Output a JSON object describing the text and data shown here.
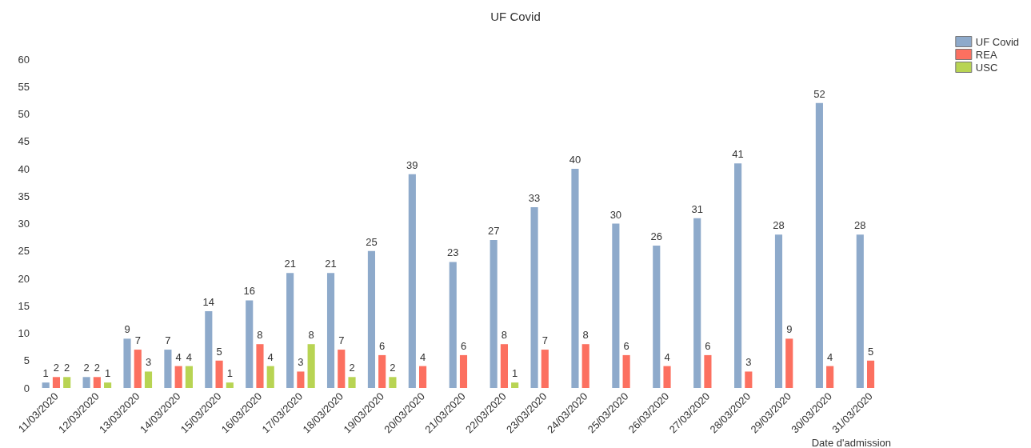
{
  "chart_data": {
    "type": "bar",
    "title": "UF Covid",
    "xlabel": "Date d'admission",
    "categories": [
      "11/03/2020",
      "12/03/2020",
      "13/03/2020",
      "14/03/2020",
      "15/03/2020",
      "16/03/2020",
      "17/03/2020",
      "18/03/2020",
      "19/03/2020",
      "20/03/2020",
      "21/03/2020",
      "22/03/2020",
      "23/03/2020",
      "24/03/2020",
      "25/03/2020",
      "26/03/2020",
      "27/03/2020",
      "28/03/2020",
      "29/03/2020",
      "30/03/2020",
      "31/03/2020"
    ],
    "series": [
      {
        "name": "UF Covid",
        "color": "#8eaacb",
        "values": [
          1,
          2,
          9,
          7,
          14,
          16,
          21,
          21,
          25,
          39,
          23,
          27,
          33,
          40,
          30,
          26,
          31,
          41,
          28,
          52,
          28
        ]
      },
      {
        "name": "REA",
        "color": "#fc7060",
        "values": [
          2,
          2,
          7,
          4,
          5,
          8,
          3,
          7,
          6,
          4,
          6,
          8,
          7,
          8,
          6,
          4,
          6,
          3,
          9,
          4,
          5
        ]
      },
      {
        "name": "USC",
        "color": "#b8d453",
        "values": [
          2,
          1,
          3,
          4,
          1,
          4,
          8,
          2,
          2,
          null,
          null,
          1,
          null,
          null,
          null,
          null,
          null,
          null,
          null,
          null,
          null
        ]
      }
    ],
    "ylim": [
      0,
      60
    ],
    "yticks": [
      0,
      5,
      10,
      15,
      20,
      25,
      30,
      35,
      40,
      45,
      50,
      55,
      60
    ],
    "grid": false,
    "legend": "top right",
    "data_labels": true
  }
}
